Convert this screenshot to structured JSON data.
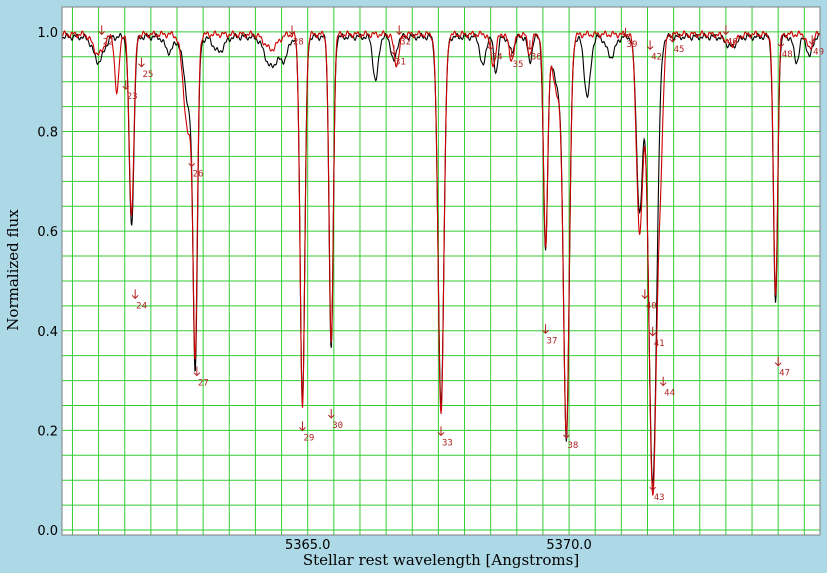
{
  "chart_data": {
    "type": "line",
    "xlabel": "Stellar rest wavelength [Angstroms]",
    "ylabel": "Normalized flux",
    "xlim": [
      5360.3,
      5374.8
    ],
    "ylim": [
      -0.01,
      1.05
    ],
    "x_ticks_labeled": [
      "5365.0",
      "5370.0"
    ],
    "x_tick_values": [
      5365.0,
      5370.0
    ],
    "y_ticks": [
      "0.0",
      "0.2",
      "0.4",
      "0.6",
      "0.8",
      "1.0"
    ],
    "y_tick_values": [
      0.0,
      0.2,
      0.4,
      0.6,
      0.8,
      1.0
    ],
    "x_minor_step": 0.5,
    "y_minor_step": 0.05,
    "grid": true,
    "colors": {
      "observed": "#000000",
      "model": "#cc0000",
      "grid": "#33cc33",
      "frame": "#808080",
      "plot_bg": "#ffffff",
      "page_bg": "#add8e6",
      "markers": "#b22222"
    },
    "series": [
      {
        "color": "#000000",
        "continuum": 0.99,
        "lines": [
          {
            "x": 5361.0,
            "depth": 0.05,
            "width": 0.1
          },
          {
            "x": 5361.63,
            "depth": 0.38,
            "width": 0.045
          },
          {
            "x": 5362.35,
            "depth": 0.03,
            "width": 0.08
          },
          {
            "x": 5362.85,
            "depth": 0.58,
            "width": 0.04
          },
          {
            "x": 5362.75,
            "depth": 0.15,
            "width": 0.1
          },
          {
            "x": 5363.3,
            "depth": 0.03,
            "width": 0.1
          },
          {
            "x": 5364.3,
            "depth": 0.06,
            "width": 0.12
          },
          {
            "x": 5364.55,
            "depth": 0.04,
            "width": 0.08
          },
          {
            "x": 5364.9,
            "depth": 0.73,
            "width": 0.045
          },
          {
            "x": 5365.45,
            "depth": 0.63,
            "width": 0.04
          },
          {
            "x": 5366.3,
            "depth": 0.09,
            "width": 0.05
          },
          {
            "x": 5366.65,
            "depth": 0.05,
            "width": 0.05
          },
          {
            "x": 5367.55,
            "depth": 0.74,
            "width": 0.055
          },
          {
            "x": 5368.35,
            "depth": 0.06,
            "width": 0.05
          },
          {
            "x": 5368.6,
            "depth": 0.07,
            "width": 0.04
          },
          {
            "x": 5368.9,
            "depth": 0.03,
            "width": 0.05
          },
          {
            "x": 5369.25,
            "depth": 0.05,
            "width": 0.04
          },
          {
            "x": 5369.55,
            "depth": 0.42,
            "width": 0.04
          },
          {
            "x": 5369.95,
            "depth": 0.76,
            "width": 0.055
          },
          {
            "x": 5369.8,
            "depth": 0.1,
            "width": 0.12
          },
          {
            "x": 5370.35,
            "depth": 0.12,
            "width": 0.06
          },
          {
            "x": 5370.8,
            "depth": 0.04,
            "width": 0.08
          },
          {
            "x": 5371.6,
            "depth": 0.9,
            "width": 0.075
          },
          {
            "x": 5371.35,
            "depth": 0.35,
            "width": 0.06
          },
          {
            "x": 5373.1,
            "depth": 0.02,
            "width": 0.1
          },
          {
            "x": 5373.95,
            "depth": 0.54,
            "width": 0.04
          },
          {
            "x": 5374.35,
            "depth": 0.05,
            "width": 0.05
          },
          {
            "x": 5374.6,
            "depth": 0.04,
            "width": 0.05
          }
        ]
      },
      {
        "color": "#cc0000",
        "continuum": 0.995,
        "lines": [
          {
            "x": 5361.0,
            "depth": 0.04,
            "width": 0.1
          },
          {
            "x": 5361.63,
            "depth": 0.36,
            "width": 0.045
          },
          {
            "x": 5361.35,
            "depth": 0.12,
            "width": 0.04
          },
          {
            "x": 5362.85,
            "depth": 0.58,
            "width": 0.04
          },
          {
            "x": 5362.72,
            "depth": 0.2,
            "width": 0.09
          },
          {
            "x": 5364.3,
            "depth": 0.03,
            "width": 0.12
          },
          {
            "x": 5364.9,
            "depth": 0.75,
            "width": 0.045
          },
          {
            "x": 5365.45,
            "depth": 0.62,
            "width": 0.04
          },
          {
            "x": 5366.7,
            "depth": 0.06,
            "width": 0.05
          },
          {
            "x": 5367.55,
            "depth": 0.76,
            "width": 0.055
          },
          {
            "x": 5368.55,
            "depth": 0.06,
            "width": 0.05
          },
          {
            "x": 5368.9,
            "depth": 0.05,
            "width": 0.05
          },
          {
            "x": 5369.25,
            "depth": 0.04,
            "width": 0.04
          },
          {
            "x": 5369.55,
            "depth": 0.41,
            "width": 0.04
          },
          {
            "x": 5369.95,
            "depth": 0.75,
            "width": 0.055
          },
          {
            "x": 5369.8,
            "depth": 0.12,
            "width": 0.12
          },
          {
            "x": 5371.6,
            "depth": 0.92,
            "width": 0.075
          },
          {
            "x": 5371.35,
            "depth": 0.4,
            "width": 0.06
          },
          {
            "x": 5371.75,
            "depth": 0.2,
            "width": 0.05
          },
          {
            "x": 5373.1,
            "depth": 0.02,
            "width": 0.1
          },
          {
            "x": 5373.95,
            "depth": 0.52,
            "width": 0.04
          },
          {
            "x": 5374.6,
            "depth": 0.03,
            "width": 0.05
          }
        ]
      }
    ],
    "line_markers": [
      {
        "label": "22",
        "x": 5361.06,
        "y": 0.995
      },
      {
        "label": "23",
        "x": 5361.52,
        "y": 0.885
      },
      {
        "label": "24",
        "x": 5361.7,
        "y": 0.465
      },
      {
        "label": "25",
        "x": 5361.82,
        "y": 0.93
      },
      {
        "label": "26",
        "x": 5362.78,
        "y": 0.73
      },
      {
        "label": "27",
        "x": 5362.88,
        "y": 0.31
      },
      {
        "label": "28",
        "x": 5364.7,
        "y": 0.995
      },
      {
        "label": "29",
        "x": 5364.9,
        "y": 0.2
      },
      {
        "label": "30",
        "x": 5365.45,
        "y": 0.225
      },
      {
        "label": "31",
        "x": 5366.65,
        "y": 0.955
      },
      {
        "label": "32",
        "x": 5366.75,
        "y": 0.995
      },
      {
        "label": "33",
        "x": 5367.55,
        "y": 0.19
      },
      {
        "label": "34",
        "x": 5368.5,
        "y": 0.965
      },
      {
        "label": "35",
        "x": 5368.9,
        "y": 0.95
      },
      {
        "label": "36",
        "x": 5369.25,
        "y": 0.965
      },
      {
        "label": "37",
        "x": 5369.55,
        "y": 0.395
      },
      {
        "label": "38",
        "x": 5369.95,
        "y": 0.185
      },
      {
        "label": "39",
        "x": 5371.08,
        "y": 0.99
      },
      {
        "label": "40",
        "x": 5371.45,
        "y": 0.465
      },
      {
        "label": "41",
        "x": 5371.6,
        "y": 0.39
      },
      {
        "label": "42",
        "x": 5371.55,
        "y": 0.965
      },
      {
        "label": "43",
        "x": 5371.6,
        "y": 0.08
      },
      {
        "label": "44",
        "x": 5371.8,
        "y": 0.29
      },
      {
        "label": "45",
        "x": 5371.98,
        "y": 0.98
      },
      {
        "label": "46",
        "x": 5373.0,
        "y": 0.995
      },
      {
        "label": "47",
        "x": 5374.0,
        "y": 0.33
      },
      {
        "label": "48",
        "x": 5374.05,
        "y": 0.97
      },
      {
        "label": "49",
        "x": 5374.65,
        "y": 0.975
      }
    ]
  }
}
